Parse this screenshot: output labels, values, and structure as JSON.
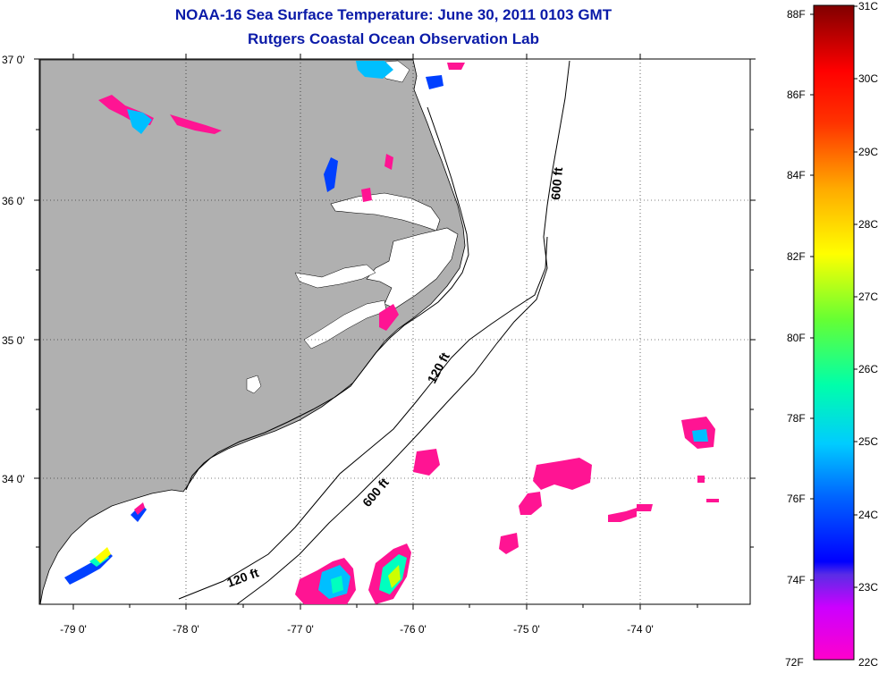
{
  "title_line1": "NOAA-16 Sea Surface Temperature:  June 30, 2011 0103 GMT",
  "title_line2": "Rutgers Coastal Ocean Observation Lab",
  "lat_labels": [
    "37 0'",
    "36 0'",
    "35 0'",
    "34 0'"
  ],
  "lon_labels": [
    "-79 0'",
    "-78 0'",
    "-77 0'",
    "-76 0'",
    "-75 0'",
    "-74 0'"
  ],
  "contours": {
    "shelf_120_south": "120 ft",
    "shelf_120_mid": "120 ft",
    "slope_600_south": "600 ft",
    "slope_600_north": "600 ft"
  },
  "colorbar": {
    "fahrenheit": [
      "88F",
      "86F",
      "84F",
      "82F",
      "80F",
      "78F",
      "76F",
      "74F",
      "72F"
    ],
    "celsius": [
      "31C",
      "30C",
      "29C",
      "28C",
      "27C",
      "26C",
      "25C",
      "24C",
      "23C",
      "22C"
    ],
    "colors": [
      "#8b0000",
      "#ff0000",
      "#ff7f00",
      "#ffff00",
      "#7fff00",
      "#00ffbf",
      "#00bfff",
      "#0040ff",
      "#0000ff",
      "#8a2be2",
      "#ff00ff",
      "#ff1493"
    ]
  },
  "colors": {
    "title": "#0a1aa8",
    "land": "#b0b0b0",
    "sst_patch": "#ff1493"
  }
}
